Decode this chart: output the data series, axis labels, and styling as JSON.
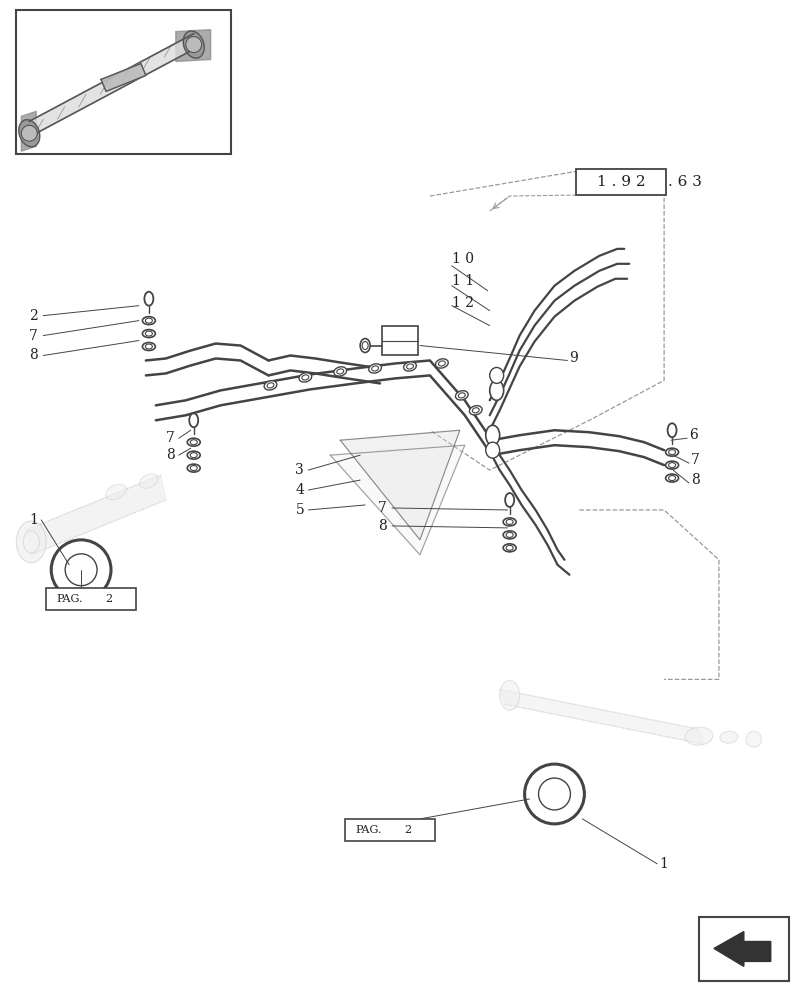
{
  "bg_color": "#ffffff",
  "lc": "#444444",
  "gray": "#aaaaaa",
  "lgray": "#cccccc",
  "dgray": "#222222",
  "dc": "#999999"
}
